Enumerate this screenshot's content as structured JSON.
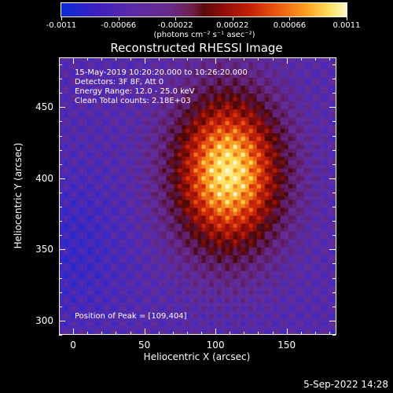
{
  "colorbar": {
    "ticks": [
      "-0.0011",
      "-0.00066",
      "-0.00022",
      "0.00022",
      "0.00066",
      "0.0011"
    ],
    "units": "(photons cm⁻² s⁻¹ asec⁻²)",
    "palette": [
      "#0a2bd8",
      "#6a2a8a",
      "#5a0a0a",
      "#c41f08",
      "#ffa020",
      "#fff6c8"
    ]
  },
  "chart_data": {
    "type": "heatmap",
    "title": "Reconstructed RHESSI Image",
    "xlabel": "Heliocentric X (arcsec)",
    "ylabel": "Heliocentric Y (arcsec)",
    "xlim": [
      -10,
      185
    ],
    "ylim": [
      290,
      485
    ],
    "xticks": [
      0,
      50,
      100,
      150
    ],
    "yticks": [
      300,
      350,
      400,
      450
    ],
    "peak": [
      109,
      404
    ],
    "value_range": [
      -0.0011,
      0.0011
    ],
    "annotations": [
      "15-May-2019 10:20:20.000 to 10:26:20.000",
      "Detectors: 3F 8F, Att 0",
      "Energy Range: 12.0 - 25.0 keV",
      "Clean    Total counts: 2.18E+03",
      "Position of Peak = [109,404]"
    ]
  },
  "footer": {
    "timestamp": "5-Sep-2022 14:28"
  }
}
